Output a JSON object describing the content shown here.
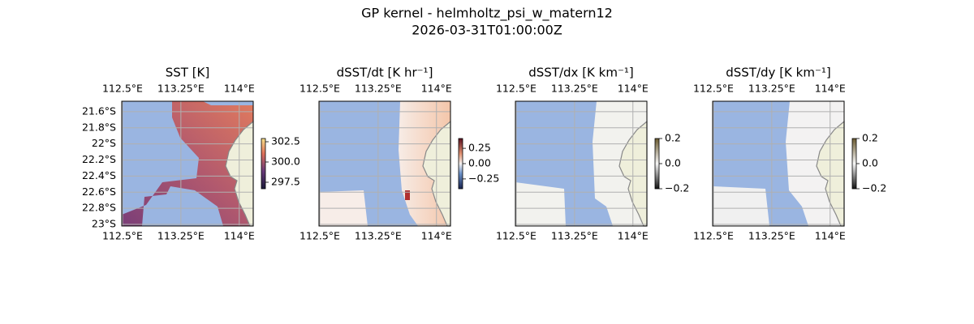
{
  "title": [
    "GP kernel - helmholtz_psi_w_matern12",
    "2026-03-31T01:00:00Z"
  ],
  "panels": [
    {
      "title": "SST [K]",
      "xlim": [
        112.49,
        114.18
      ],
      "ylim": [
        -23.02,
        -21.47
      ],
      "xticks": [
        {
          "value": 112.5,
          "label": "112.5°E"
        },
        {
          "value": 113.25,
          "label": "113.25°E"
        },
        {
          "value": 114,
          "label": "114°E"
        }
      ],
      "yticks": [
        {
          "value": -21.6,
          "label": "21.6°S"
        },
        {
          "value": -21.8,
          "label": "21.8°S"
        },
        {
          "value": -22,
          "label": "22°S"
        },
        {
          "value": -22.2,
          "label": "22.2°S"
        },
        {
          "value": -22.4,
          "label": "22.4°S"
        },
        {
          "value": -22.6,
          "label": "22.6°S"
        },
        {
          "value": -22.8,
          "label": "22.8°S"
        },
        {
          "value": -23,
          "label": "23°S"
        }
      ],
      "colorbar": {
        "lim": [
          296.7,
          302.9
        ],
        "ticks": [
          302.5,
          {
            "value": 300,
            "label": "300.0"
          },
          297.5
        ]
      }
    },
    {
      "title": "dSST/dt [K hr⁻¹]",
      "xlim": [
        112.49,
        114.18
      ],
      "ylim": [
        -23.02,
        -21.47
      ],
      "xticks": [
        {
          "value": 112.5,
          "label": "112.5°E"
        },
        {
          "value": 113.25,
          "label": "113.25°E"
        },
        {
          "value": 114,
          "label": "114°E"
        }
      ],
      "colorbar": {
        "lim": [
          -0.41,
          0.41
        ],
        "ticks": [
          0.25,
          {
            "value": 0,
            "label": "0.00"
          },
          {
            "value": -0.25,
            "label": "−0.25"
          }
        ]
      }
    },
    {
      "title": "dSST/dx [K km⁻¹]",
      "xlim": [
        112.49,
        114.18
      ],
      "ylim": [
        -23.02,
        -21.47
      ],
      "xticks": [
        {
          "value": 112.5,
          "label": "112.5°E"
        },
        {
          "value": 113.25,
          "label": "113.25°E"
        },
        {
          "value": 114,
          "label": "114°E"
        }
      ],
      "colorbar": {
        "lim": [
          -0.2,
          0.2
        ],
        "ticks": [
          0.2,
          {
            "value": 0,
            "label": "0.0"
          },
          {
            "value": -0.2,
            "label": "−0.2"
          }
        ]
      }
    },
    {
      "title": "dSST/dy [K km⁻¹]",
      "xlim": [
        112.49,
        114.18
      ],
      "ylim": [
        -23.02,
        -21.47
      ],
      "xticks": [
        {
          "value": 112.5,
          "label": "112.5°E"
        },
        {
          "value": 113.25,
          "label": "113.25°E"
        },
        {
          "value": 114,
          "label": "114°E"
        }
      ],
      "colorbar": {
        "lim": [
          -0.2,
          0.2
        ],
        "ticks": [
          0.2,
          {
            "value": 0,
            "label": "0.0"
          },
          {
            "value": -0.2,
            "label": "−0.2"
          }
        ]
      }
    }
  ]
}
